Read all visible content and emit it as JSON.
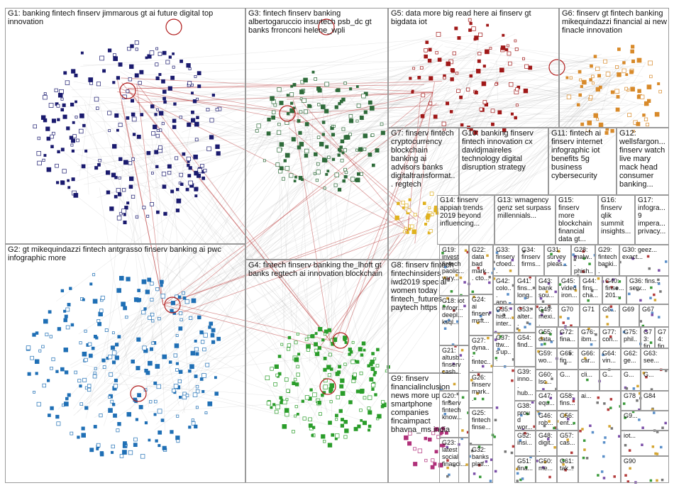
{
  "groups": {
    "G1": "G1: banking fintech finserv jimmarous gt ai future digital top innovation",
    "G2": "G2: gt mikequindazzi fintech antgrasso finserv banking ai pwc infographic more",
    "G3": "G3: fintech finserv banking albertogaruccio insurtech psb_dc gt banks frronconi helene_wpli",
    "G4": "G4: fintech finserv banking the_lhoft gt banks regtech ai innovation blockchain",
    "G5": "G5: data more big read here ai finserv gt bigdata iot",
    "G6": "G6: finserv gt fintech banking mikequindazzi financial ai new finacle innovation",
    "G7": "G7: finserv fintech cryptocurrency blockchain banking ai advisors banks digitaltransformat... regtech",
    "G8": "G8: finserv fintech fintechinsiders iwd2019 special women today fintech_futures paytech https",
    "G9": "G9: finserv financialinclusion news more up smartphone companies fincaimpact bhavna_ms india",
    "G10": "G10: banking finserv fintech innovation cx davidjmaireles technology digital disruption strategy",
    "G11": "G11: fintech ai finserv internet infographic iot benefits 5g business cybersecurity",
    "G12": "G12: wellsfargon... finserv watch live mary mack head consumer banking...",
    "G13": "G13: wmagency genz set surpass millennials...",
    "G14": "G14: finserv appian trends 2019 beyond influencing...",
    "G15": "G15: finserv more blockchain financial data gt...",
    "G16": "G16: finserv qlik summit insights...",
    "G17": "G17: infogra... 9 impera... privacy...",
    "G18": "G18: iot infogr... deepl... ksql...",
    "G19": "G19: invest fintech paolic... very...",
    "G20": "G20: finserv fintech know...",
    "G21": "G21: altusb... finserv cash...",
    "G22": "G22: data bad mark... cto...",
    "G23": "G23: latest social financi...",
    "G24": "G24: ai finserv msft...",
    "G25": "G25: fintech finse...",
    "G26": "G26: finserv mark...",
    "G27": "G27: dyna... fintec...",
    "G28": "G28: malw... phish...",
    "G29": "G29: fintech banki...",
    "G30": "G30: geez... exact...",
    "G31": "G31: survey pleas...",
    "G32": "G32: banks platf...",
    "G33": "G33: finserv cfoed...",
    "G34": "G34: finserv firms...",
    "G35": "G35: hist... inter...",
    "G36": "G36: fins... serv...",
    "G37": "G37: ttw... s'up...",
    "G38": "G38: proud wor...",
    "G39": "G39: inno... hub...",
    "G40": "G40: finse... 201...",
    "G41": "G41: fins... long...",
    "G42": "G42: colo... app...",
    "G43": "G43: bank sou...",
    "G44": "G44: fins... cha...",
    "G45": "G45: video iron...",
    "G46": "G46: rob...",
    "G47": "G47: equ...",
    "G48": "G48: digit...",
    "G49": "G49: mexi...",
    "G50": "G50: me...",
    "G51": "G51: fina...",
    "G52": "G52: insi...",
    "G53": "G53: alter...",
    "G54": "G54: find...",
    "G55": "G55: data...",
    "G56": "G56: ent...",
    "G57": "G57: cas...",
    "G58": "G58: fins...",
    "G59": "G59: wo...",
    "G60": "G60: lsc...",
    "G61": "G61: tak...",
    "G62": "G62: ge...",
    "G63": "G63: see...",
    "G64": "G64: vin...",
    "G65": "G65: fin...",
    "G66": "G66: car...",
    "G67": "G67",
    "G68": "G6...",
    "G69": "G69",
    "G70": "G70",
    "G71": "G71",
    "G72": "G72: fina...",
    "G73": "G73: fin...",
    "G74": "G74: fina...",
    "G75": "G75: phil...",
    "G76": "G76: ibm...",
    "G77": "G77: con...",
    "G78": "G78",
    "G81": "G...",
    "G84": "G84",
    "G88": "G...",
    "G89": "G...",
    "G90": "G90",
    "G_misc_a": "G...",
    "G_misc_b": "iot...",
    "G_misc_c": "ai...",
    "G_misc_d": "G...",
    "G_misc_e": "cli...",
    "G_misc_f": "G9..."
  },
  "colors": {
    "g1_nodes": "#1a1a6e",
    "g2_nodes": "#1f6fb5",
    "g3_nodes": "#2e6b3a",
    "g4_nodes": "#2a9d2a",
    "g5_nodes": "#a01818",
    "g6_nodes": "#d88a2a",
    "g7_nodes": "#e0b21f",
    "g9_nodes": "#b0307a",
    "highlight_edge": "#b22020",
    "edge": "#888888",
    "border": "#9a9a9a"
  }
}
